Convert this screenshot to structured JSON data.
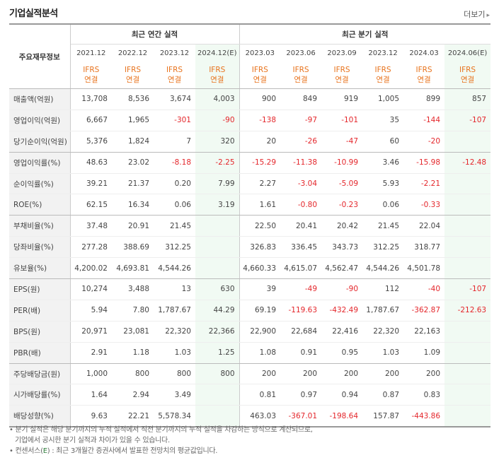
{
  "header": {
    "title": "기업실적분석",
    "more_label": "더보기"
  },
  "table": {
    "label_header": "주요재무정보",
    "group_annual": "최근 연간 실적",
    "group_quarter": "최근 분기 실적",
    "periods": [
      "2021.12",
      "2022.12",
      "2023.12",
      "2024.12(E)",
      "2023.03",
      "2023.06",
      "2023.09",
      "2023.12",
      "2024.03",
      "2024.06(E)"
    ],
    "ifrs": "IFRS",
    "consolidated": "연결",
    "rows": [
      {
        "label": "매출액(억원)",
        "values": [
          "13,708",
          "8,536",
          "3,674",
          "4,003",
          "900",
          "849",
          "919",
          "1,005",
          "899",
          "857"
        ]
      },
      {
        "label": "영업이익(억원)",
        "values": [
          "6,667",
          "1,965",
          "-301",
          "-90",
          "-138",
          "-97",
          "-101",
          "35",
          "-144",
          "-107"
        ]
      },
      {
        "label": "당기순이익(억원)",
        "values": [
          "5,376",
          "1,824",
          "7",
          "320",
          "20",
          "-26",
          "-47",
          "60",
          "-20",
          ""
        ]
      },
      {
        "label": "영업이익률(%)",
        "values": [
          "48.63",
          "23.02",
          "-8.18",
          "-2.25",
          "-15.29",
          "-11.38",
          "-10.99",
          "3.46",
          "-15.98",
          "-12.48"
        ]
      },
      {
        "label": "순이익률(%)",
        "values": [
          "39.21",
          "21.37",
          "0.20",
          "7.99",
          "2.27",
          "-3.04",
          "-5.09",
          "5.93",
          "-2.21",
          ""
        ]
      },
      {
        "label": "ROE(%)",
        "values": [
          "62.15",
          "16.34",
          "0.06",
          "3.19",
          "1.61",
          "-0.80",
          "-0.23",
          "0.06",
          "-0.33",
          ""
        ]
      },
      {
        "label": "부채비율(%)",
        "values": [
          "37.48",
          "20.91",
          "21.45",
          "",
          "22.50",
          "20.41",
          "20.42",
          "21.45",
          "22.04",
          ""
        ]
      },
      {
        "label": "당좌비율(%)",
        "values": [
          "277.28",
          "388.69",
          "312.25",
          "",
          "326.83",
          "336.45",
          "343.73",
          "312.25",
          "318.77",
          ""
        ]
      },
      {
        "label": "유보율(%)",
        "values": [
          "4,200.02",
          "4,693.81",
          "4,544.26",
          "",
          "4,660.33",
          "4,615.07",
          "4,562.47",
          "4,544.26",
          "4,501.78",
          ""
        ]
      },
      {
        "label": "EPS(원)",
        "values": [
          "10,274",
          "3,488",
          "13",
          "630",
          "39",
          "-49",
          "-90",
          "112",
          "-40",
          "-107"
        ]
      },
      {
        "label": "PER(배)",
        "values": [
          "5.94",
          "7.80",
          "1,787.67",
          "44.29",
          "69.19",
          "-119.63",
          "-432.49",
          "1,787.67",
          "-362.87",
          "-212.63"
        ]
      },
      {
        "label": "BPS(원)",
        "values": [
          "20,971",
          "23,081",
          "22,320",
          "22,366",
          "22,900",
          "22,684",
          "22,416",
          "22,320",
          "22,163",
          ""
        ]
      },
      {
        "label": "PBR(배)",
        "values": [
          "2.91",
          "1.18",
          "1.03",
          "1.25",
          "1.08",
          "0.91",
          "0.95",
          "1.03",
          "1.09",
          ""
        ]
      },
      {
        "label": "주당배당금(원)",
        "values": [
          "1,000",
          "800",
          "800",
          "800",
          "200",
          "200",
          "200",
          "200",
          "200",
          ""
        ]
      },
      {
        "label": "시가배당률(%)",
        "values": [
          "1.64",
          "2.94",
          "3.49",
          "",
          "0.81",
          "0.97",
          "0.94",
          "0.87",
          "0.83",
          ""
        ]
      },
      {
        "label": "배당성향(%)",
        "values": [
          "9.63",
          "22.21",
          "5,578.34",
          "",
          "463.03",
          "-367.01",
          "-198.64",
          "157.87",
          "-443.86",
          ""
        ]
      }
    ]
  },
  "notes": {
    "line1": "분기 실적은 해당 분기까지의 누적 실적에서 직전 분기까지의 누적 실적을 차감하는 방식으로 계산되므로,",
    "line2": "기업에서 공시한 분기 실적과 차이가 있을 수 있습니다.",
    "line3_pre": "컨센서스(",
    "line3_e": "E",
    "line3_post": ") : 최근 3개월간 증권사에서 발표한 전망치의 평균값입니다."
  },
  "colors": {
    "negative": "#e4262b",
    "ifrs": "#e8731d",
    "estimate_bg": "#f1faf3",
    "label_bg": "#f2f2f2"
  }
}
